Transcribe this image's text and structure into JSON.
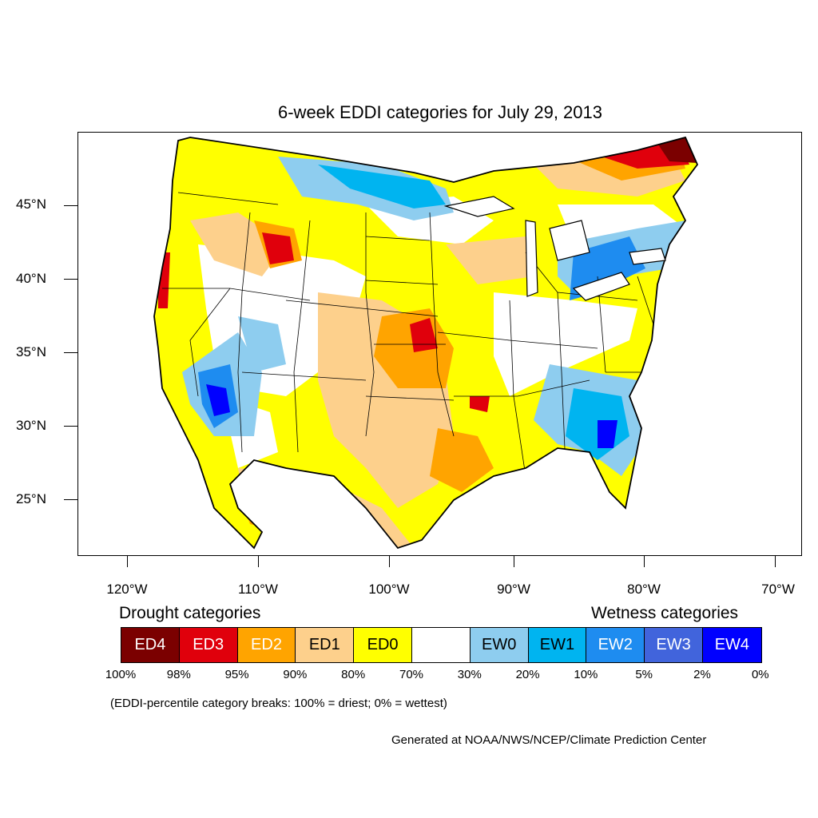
{
  "title": "6-week EDDI categories for July 29, 2013",
  "axes": {
    "lat_labels": [
      "45°N",
      "40°N",
      "35°N",
      "30°N",
      "25°N"
    ],
    "lon_labels": [
      "120°W",
      "110°W",
      "100°W",
      "90°W",
      "80°W",
      "70°W"
    ]
  },
  "legend": {
    "drought_heading": "Drought categories",
    "wetness_heading": "Wetness categories",
    "categories": [
      {
        "label": "ED4",
        "color": "#7b0000",
        "text_color": "#ffffff"
      },
      {
        "label": "ED3",
        "color": "#e0000c",
        "text_color": "#ffffff"
      },
      {
        "label": "ED2",
        "color": "#ffa400",
        "text_color": "#ffffff"
      },
      {
        "label": "ED1",
        "color": "#fdd08c",
        "text_color": "#000000"
      },
      {
        "label": "ED0",
        "color": "#ffff00",
        "text_color": "#000000"
      },
      {
        "label": "",
        "color": "#ffffff",
        "text_color": "#000000"
      },
      {
        "label": "EW0",
        "color": "#8ecdef",
        "text_color": "#000000"
      },
      {
        "label": "EW1",
        "color": "#00b4f0",
        "text_color": "#000000"
      },
      {
        "label": "EW2",
        "color": "#1e8cf0",
        "text_color": "#ffffff"
      },
      {
        "label": "EW3",
        "color": "#4164dc",
        "text_color": "#ffffff"
      },
      {
        "label": "EW4",
        "color": "#0000ff",
        "text_color": "#ffffff"
      }
    ],
    "percent_breaks": [
      "100%",
      "98%",
      "95%",
      "90%",
      "80%",
      "70%",
      "30%",
      "20%",
      "10%",
      "5%",
      "2%",
      "0%"
    ]
  },
  "note": "(EDDI-percentile category breaks: 100% = driest; 0% = wettest)",
  "credit": "Generated at NOAA/NWS/NCEP/Climate Prediction Center"
}
